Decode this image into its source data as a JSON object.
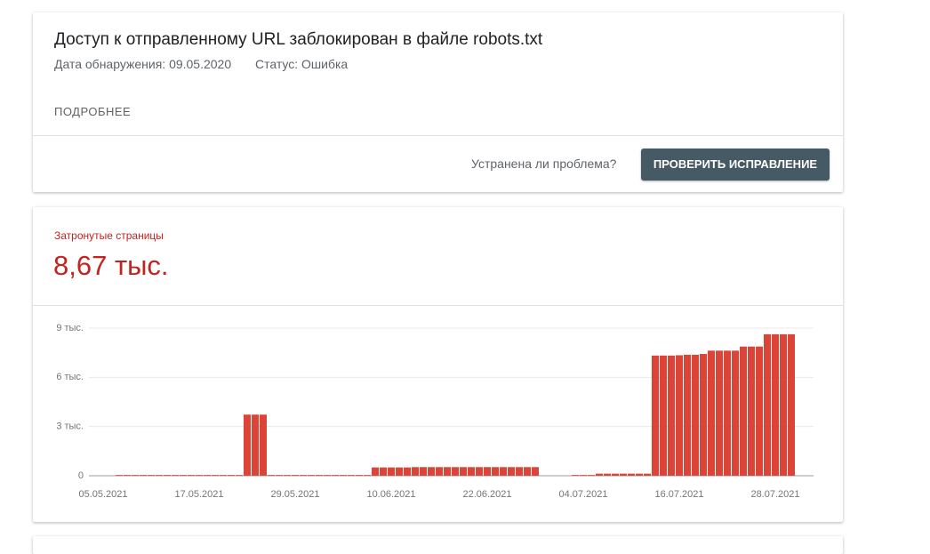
{
  "issue": {
    "title": "Доступ к отправленному URL заблокирован в файле robots.txt",
    "detected": "Дата обнаружения: 09.05.2020",
    "status": "Статус: Ошибка",
    "more": "ПОДРОБНЕЕ",
    "question": "Устранена ли проблема?",
    "button": "ПРОВЕРИТЬ ИСПРАВЛЕНИЕ"
  },
  "summary": {
    "label": "Затронутые страницы",
    "value": "8,67 тыс."
  },
  "chart_data": {
    "type": "bar",
    "color": "#db4437",
    "grid": true,
    "categories": [
      "05.05.2021",
      null,
      null,
      null,
      null,
      null,
      null,
      null,
      null,
      null,
      null,
      null,
      "17.05.2021",
      null,
      null,
      null,
      null,
      null,
      null,
      null,
      null,
      null,
      null,
      null,
      "29.05.2021",
      null,
      null,
      null,
      null,
      null,
      null,
      null,
      null,
      null,
      null,
      null,
      "10.06.2021",
      null,
      null,
      null,
      null,
      null,
      null,
      null,
      null,
      null,
      null,
      null,
      "22.06.2021",
      null,
      null,
      null,
      null,
      null,
      null,
      null,
      null,
      null,
      null,
      null,
      "04.07.2021",
      null,
      null,
      null,
      null,
      null,
      null,
      null,
      null,
      null,
      null,
      null,
      "16.07.2021",
      null,
      null,
      null,
      null,
      null,
      null,
      null,
      null,
      null,
      null,
      null,
      "28.07.2021",
      null,
      null
    ],
    "values": [
      null,
      null,
      20,
      20,
      20,
      20,
      20,
      20,
      20,
      20,
      20,
      20,
      20,
      20,
      20,
      20,
      20,
      20,
      3700,
      3700,
      3700,
      20,
      20,
      20,
      20,
      20,
      20,
      20,
      20,
      20,
      20,
      20,
      20,
      20,
      480,
      480,
      480,
      480,
      480,
      500,
      500,
      500,
      500,
      500,
      500,
      500,
      500,
      500,
      500,
      500,
      500,
      500,
      500,
      500,
      500,
      null,
      null,
      null,
      null,
      20,
      20,
      20,
      100,
      100,
      100,
      100,
      100,
      100,
      100,
      7300,
      7300,
      7300,
      7320,
      7350,
      7350,
      7400,
      7600,
      7600,
      7600,
      7600,
      7850,
      7850,
      7850,
      8600,
      8600,
      8600,
      8600
    ],
    "ylim": [
      0,
      9000
    ],
    "yticks": [
      0,
      {
        "value": 3000,
        "label": "3 тыс."
      },
      {
        "value": 6000,
        "label": "6 тыс."
      },
      {
        "value": 9000,
        "label": "9 тыс."
      }
    ]
  }
}
